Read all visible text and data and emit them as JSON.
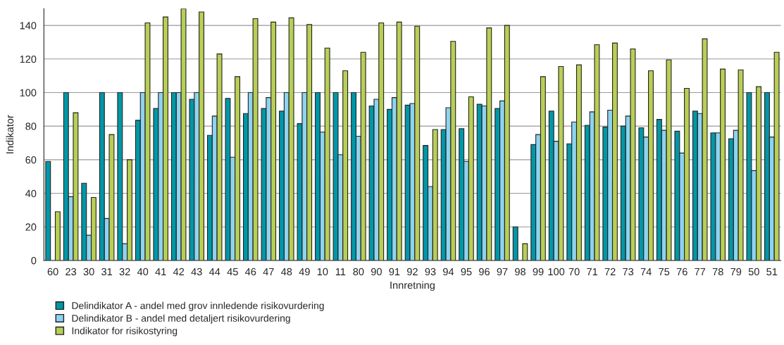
{
  "chart_data": {
    "type": "bar",
    "xlabel": "Innretning",
    "ylabel": "Indikator",
    "categories": [
      "60",
      "23",
      "30",
      "31",
      "32",
      "40",
      "41",
      "42",
      "43",
      "44",
      "45",
      "46",
      "47",
      "48",
      "49",
      "10",
      "11",
      "80",
      "90",
      "91",
      "92",
      "93",
      "94",
      "95",
      "96",
      "97",
      "98",
      "99",
      "100",
      "70",
      "71",
      "72",
      "73",
      "74",
      "75",
      "76",
      "77",
      "78",
      "79",
      "50",
      "51"
    ],
    "series": [
      {
        "name": "Delindikator A - andel med grov innledende risikovurdering",
        "color": "#0097a7",
        "values": [
          59,
          100,
          46,
          100,
          100,
          83.5,
          90.5,
          100,
          96,
          74.5,
          96.5,
          87.5,
          90.5,
          89,
          81.5,
          100,
          100,
          100,
          92,
          90,
          92.5,
          68.5,
          78,
          78.5,
          93,
          90.5,
          20,
          69,
          89,
          69.5,
          80.5,
          79.5,
          80,
          79,
          84,
          77,
          89,
          76,
          72.5,
          100,
          100
        ]
      },
      {
        "name": "Delindikator B - andel med detaljert risikovurdering",
        "color": "#8ed3f0",
        "values": [
          null,
          38,
          15,
          25,
          10,
          100,
          100,
          100,
          100,
          86,
          61.5,
          100,
          97,
          100,
          100,
          76.5,
          63,
          74,
          96,
          97,
          93.5,
          44,
          91,
          59,
          92,
          95,
          null,
          75,
          71,
          82.5,
          88.5,
          89.5,
          86,
          73.5,
          77.5,
          64,
          87.5,
          76,
          77.5,
          53.5,
          73.5
        ]
      },
      {
        "name": "Indikator for risikostyring",
        "color": "#b8cf55",
        "values": [
          29,
          88,
          37.5,
          75,
          60,
          141.5,
          145,
          150,
          148,
          123,
          109.5,
          144,
          142,
          144.5,
          140.5,
          126.5,
          113,
          124,
          141.5,
          142,
          139.5,
          78,
          130.5,
          97.5,
          138.5,
          140,
          10,
          109.5,
          115.5,
          116.5,
          128.5,
          129.5,
          126,
          113,
          119.5,
          102.5,
          132,
          114,
          113.5,
          103.5,
          124
        ]
      }
    ],
    "ylim": [
      0,
      150
    ],
    "yticks": [
      0,
      20,
      40,
      60,
      80,
      100,
      120,
      140
    ],
    "grid": "y",
    "legend": "bottom left"
  }
}
